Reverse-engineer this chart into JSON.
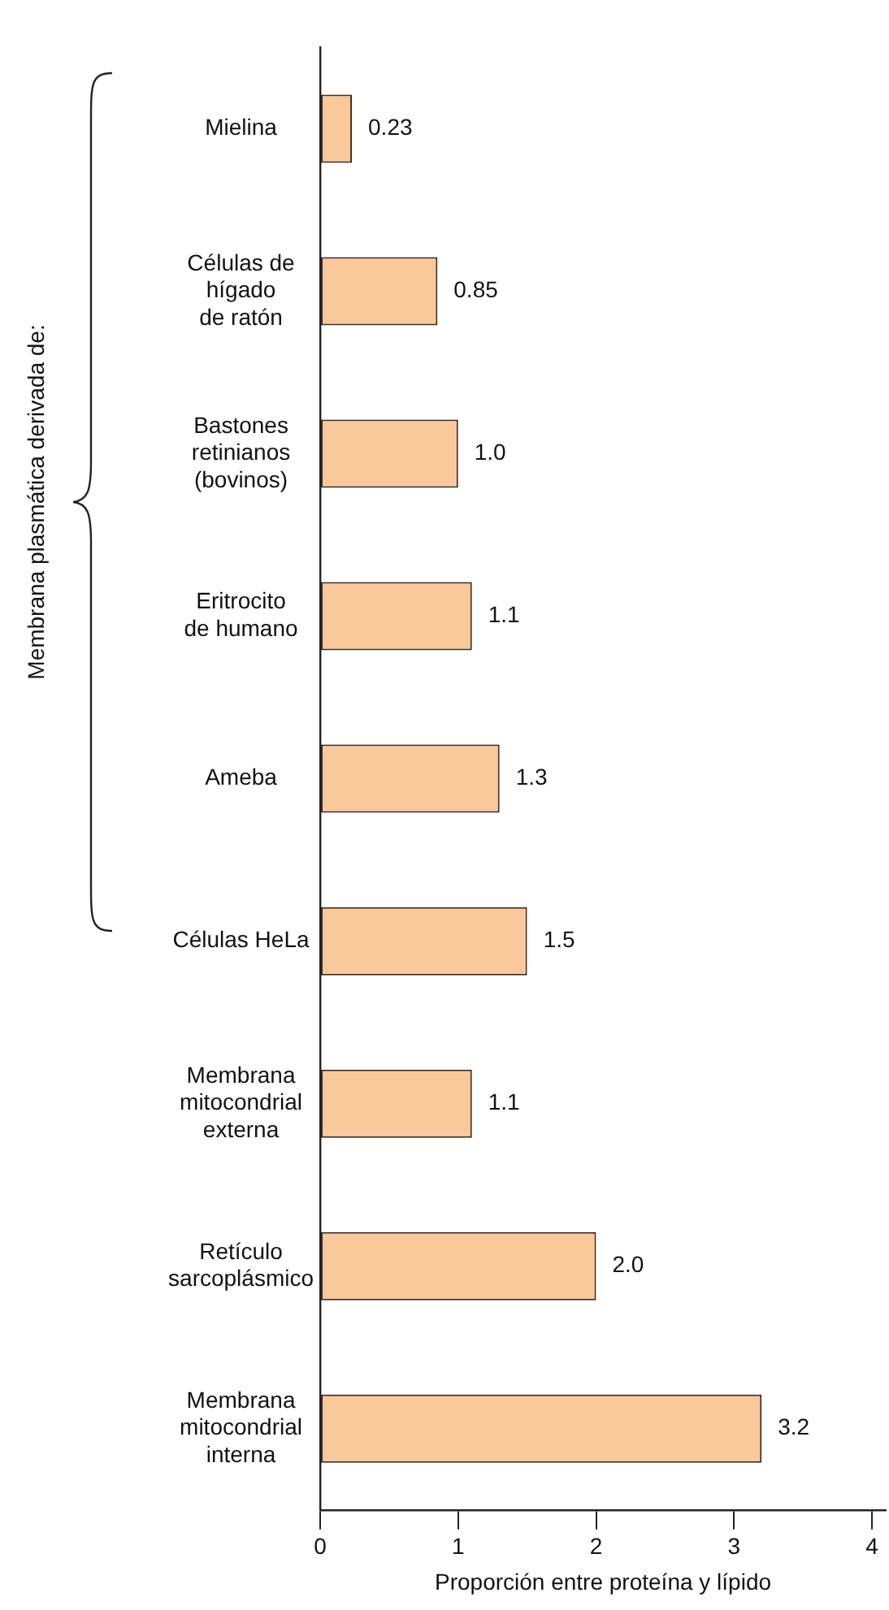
{
  "chart_data": {
    "type": "bar",
    "orientation": "horizontal",
    "xlabel": "Proporción entre proteína y lípido",
    "categories": [
      "Mielina",
      "Células de\nhígado\nde ratón",
      "Bastones\nretinianos\n(bovinos)",
      "Eritrocito\nde humano",
      "Ameba",
      "Células HeLa",
      "Membrana\nmitocondrial\nexterna",
      "Retículo\nsarcoplásmico",
      "Membrana\nmitocondrial\ninterna"
    ],
    "values": [
      0.23,
      0.85,
      1.0,
      1.1,
      1.3,
      1.5,
      1.1,
      2.0,
      3.2
    ],
    "value_labels": [
      "0.23",
      "0.85",
      "1.0",
      "1.1",
      "1.3",
      "1.5",
      "1.1",
      "2.0",
      "3.2"
    ],
    "color": "#f9c89b",
    "xlim": [
      0,
      4.1
    ],
    "xticks": [
      0,
      1,
      2,
      3,
      4
    ],
    "grid": false,
    "annotations": [
      "Membrana plasmática derivada de:"
    ]
  }
}
